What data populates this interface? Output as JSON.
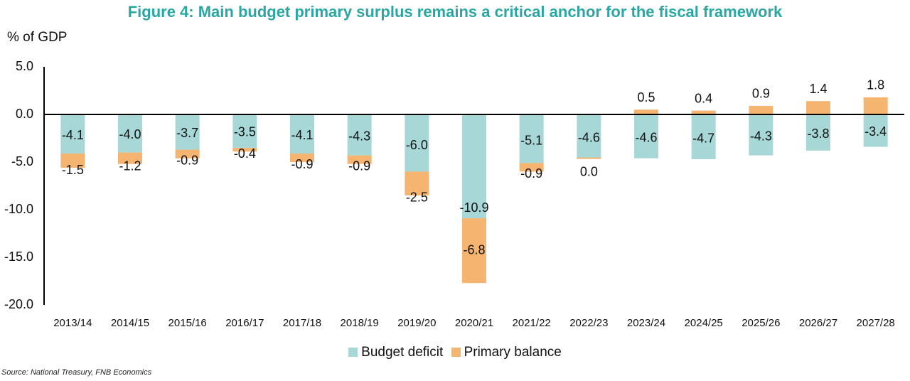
{
  "colors": {
    "deficit": "#a7d8d7",
    "primary": "#f5b46f",
    "title": "#2aa7a3"
  },
  "unit_label": "% of GDP",
  "source": "Source: National Treasury, FNB Economics",
  "chart_data": {
    "type": "bar",
    "title": "Figure 4: Main budget primary surplus remains a critical anchor for the fiscal framework",
    "ylabel": "% of GDP",
    "ylim": [
      -20,
      5
    ],
    "yticks": [
      "5.0",
      "0.0",
      "-5.0",
      "-10.0",
      "-15.0",
      "-20.0"
    ],
    "ytick_values": [
      5,
      0,
      -5,
      -10,
      -15,
      -20
    ],
    "legend_position": "bottom",
    "categories": [
      "2013/14",
      "2014/15",
      "2015/16",
      "2016/17",
      "2017/18",
      "2018/19",
      "2019/20",
      "2020/21",
      "2021/22",
      "2022/23",
      "2023/24",
      "2024/25",
      "2025/26",
      "2026/27",
      "2027/28"
    ],
    "series": [
      {
        "name": "Budget deficit",
        "values": [
          -4.1,
          -4.0,
          -3.7,
          -3.5,
          -4.1,
          -4.3,
          -6.0,
          -10.9,
          -5.1,
          -4.6,
          -4.6,
          -4.7,
          -4.3,
          -3.8,
          -3.4
        ],
        "labels": [
          "-4.1",
          "-4.0",
          "-3.7",
          "-3.5",
          "-4.1",
          "-4.3",
          "-6.0",
          "-10.9",
          "-5.1",
          "-4.6",
          "-4.6",
          "-4.7",
          "-4.3",
          "-3.8",
          "-3.4"
        ]
      },
      {
        "name": "Primary balance",
        "values": [
          -1.5,
          -1.2,
          -0.9,
          -0.4,
          -0.9,
          -0.9,
          -2.5,
          -6.8,
          -0.9,
          0.0,
          0.5,
          0.4,
          0.9,
          1.4,
          1.8
        ],
        "labels": [
          "-1.5",
          "-1.2",
          "-0.9",
          "-0.4",
          "-0.9",
          "-0.9",
          "-2.5",
          "-6.8",
          "-0.9",
          "0.0",
          "0.5",
          "0.4",
          "0.9",
          "1.4",
          "1.8"
        ]
      }
    ]
  }
}
